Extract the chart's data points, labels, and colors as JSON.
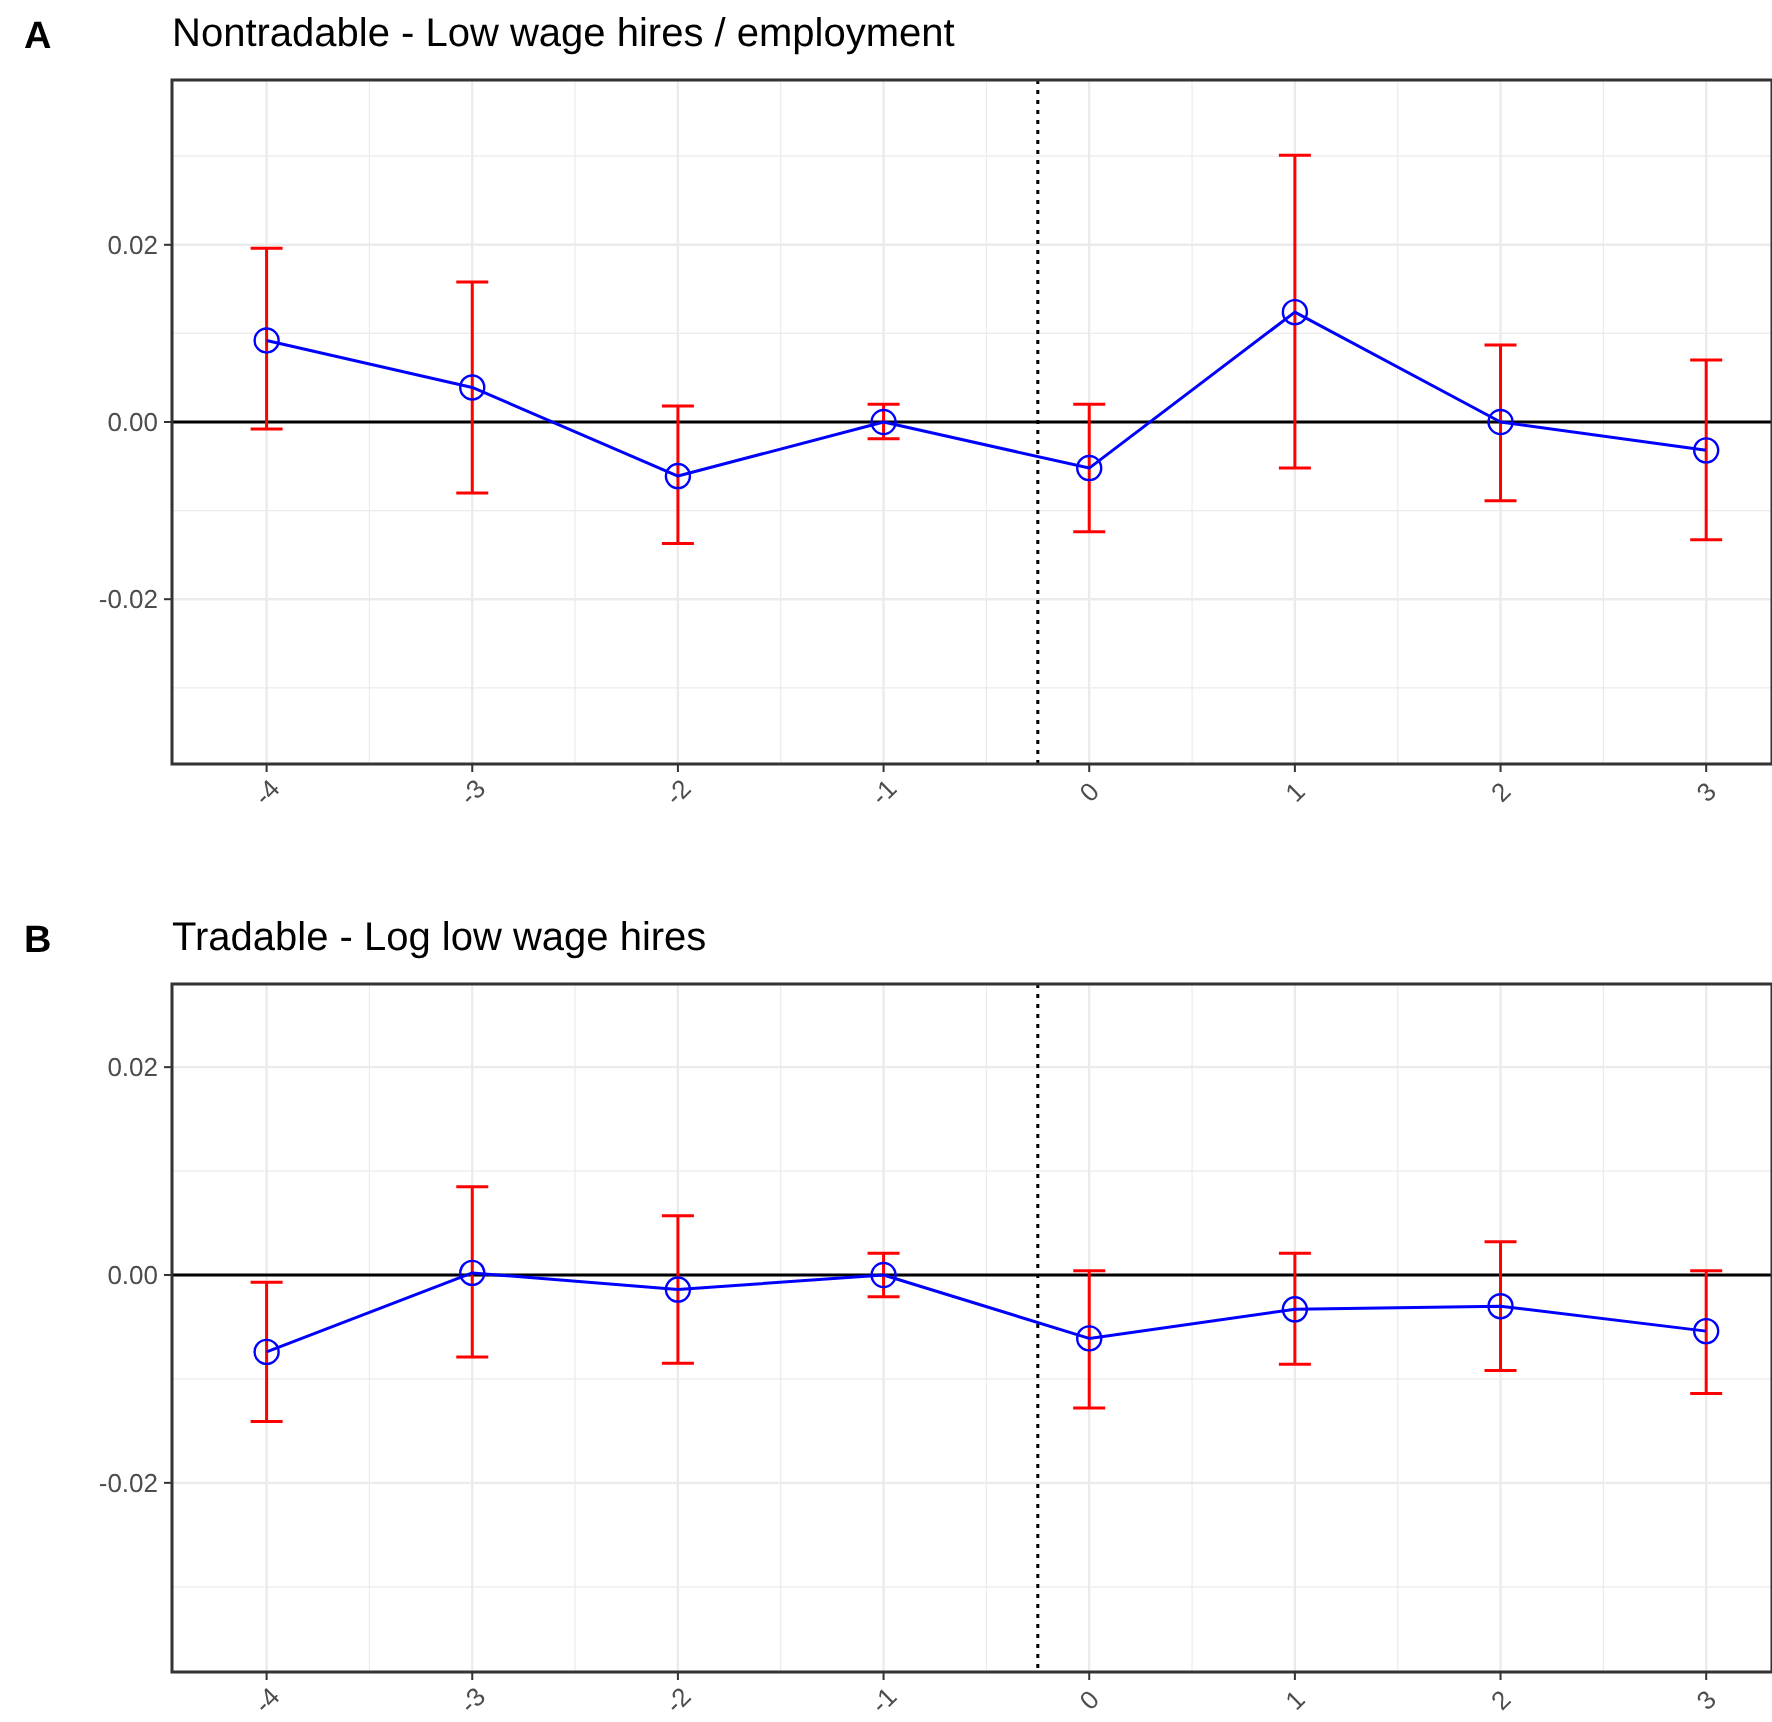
{
  "chart_data": [
    {
      "type": "line",
      "title": "Nontradable - Low wage hires / employment",
      "annotations": [
        "A"
      ],
      "x": [
        -4,
        -3,
        -2,
        -1,
        0,
        1,
        2,
        3
      ],
      "series": [
        {
          "color": "#0000ff",
          "values": [
            0.0092,
            0.0039,
            -0.0061,
            0,
            -0.0052,
            0.0124,
            0,
            -0.0032
          ],
          "errors": [
            [
              -0.0008,
              0.0196
            ],
            [
              -0.008,
              0.0158
            ],
            [
              -0.0137,
              0.0018
            ],
            [
              -0.0019,
              0.002
            ],
            [
              -0.0124,
              0.002
            ],
            [
              -0.0052,
              0.0301
            ],
            [
              -0.0089,
              0.0087
            ],
            [
              -0.0133,
              0.007
            ]
          ]
        }
      ],
      "xlim": [
        -4.46,
        3.32
      ],
      "xticks": [
        -4,
        -3,
        -2,
        -1,
        0,
        1,
        2,
        3
      ],
      "ylim": [
        -0.0386,
        0.0386
      ],
      "yticks": [
        {
          "value": -0.02,
          "label": "-0.02"
        },
        {
          "value": 0,
          "label": "0.00"
        },
        {
          "value": 0.02,
          "label": "0.02"
        }
      ],
      "grid": true,
      "marker": "circle",
      "line_style": "solid",
      "ref_lines": [
        {
          "axis": "y",
          "value": 0,
          "color": "#000000",
          "line_style": "solid"
        },
        {
          "axis": "x",
          "value": -0.25,
          "color": "#000000",
          "line_style": "dotted"
        }
      ]
    },
    {
      "type": "line",
      "title": "Tradable - Log low wage hires",
      "annotations": [
        "B"
      ],
      "x": [
        -4,
        -3,
        -2,
        -1,
        0,
        1,
        2,
        3
      ],
      "series": [
        {
          "color": "#0000ff",
          "values": [
            -0.0074,
            0.0002,
            -0.0014,
            0,
            -0.0061,
            -0.0033,
            -0.003,
            -0.0054
          ],
          "errors": [
            [
              -0.0141,
              -0.0007
            ],
            [
              -0.0079,
              0.0085
            ],
            [
              -0.0085,
              0.0057
            ],
            [
              -0.0021,
              0.0021
            ],
            [
              -0.0128,
              0.0004
            ],
            [
              -0.0086,
              0.0021
            ],
            [
              -0.0092,
              0.0032
            ],
            [
              -0.0114,
              0.0004
            ]
          ]
        }
      ],
      "xlim": [
        -4.46,
        3.32
      ],
      "xticks": [
        -4,
        -3,
        -2,
        -1,
        0,
        1,
        2,
        3
      ],
      "ylim": [
        -0.0382,
        0.028
      ],
      "yticks": [
        {
          "value": -0.02,
          "label": "-0.02"
        },
        {
          "value": 0,
          "label": "0.00"
        },
        {
          "value": 0.02,
          "label": "0.02"
        }
      ],
      "grid": true,
      "marker": "circle",
      "line_style": "solid",
      "ref_lines": [
        {
          "axis": "y",
          "value": 0,
          "color": "#000000",
          "line_style": "solid"
        },
        {
          "axis": "x",
          "value": -0.25,
          "color": "#000000",
          "line_style": "dotted"
        }
      ]
    }
  ]
}
